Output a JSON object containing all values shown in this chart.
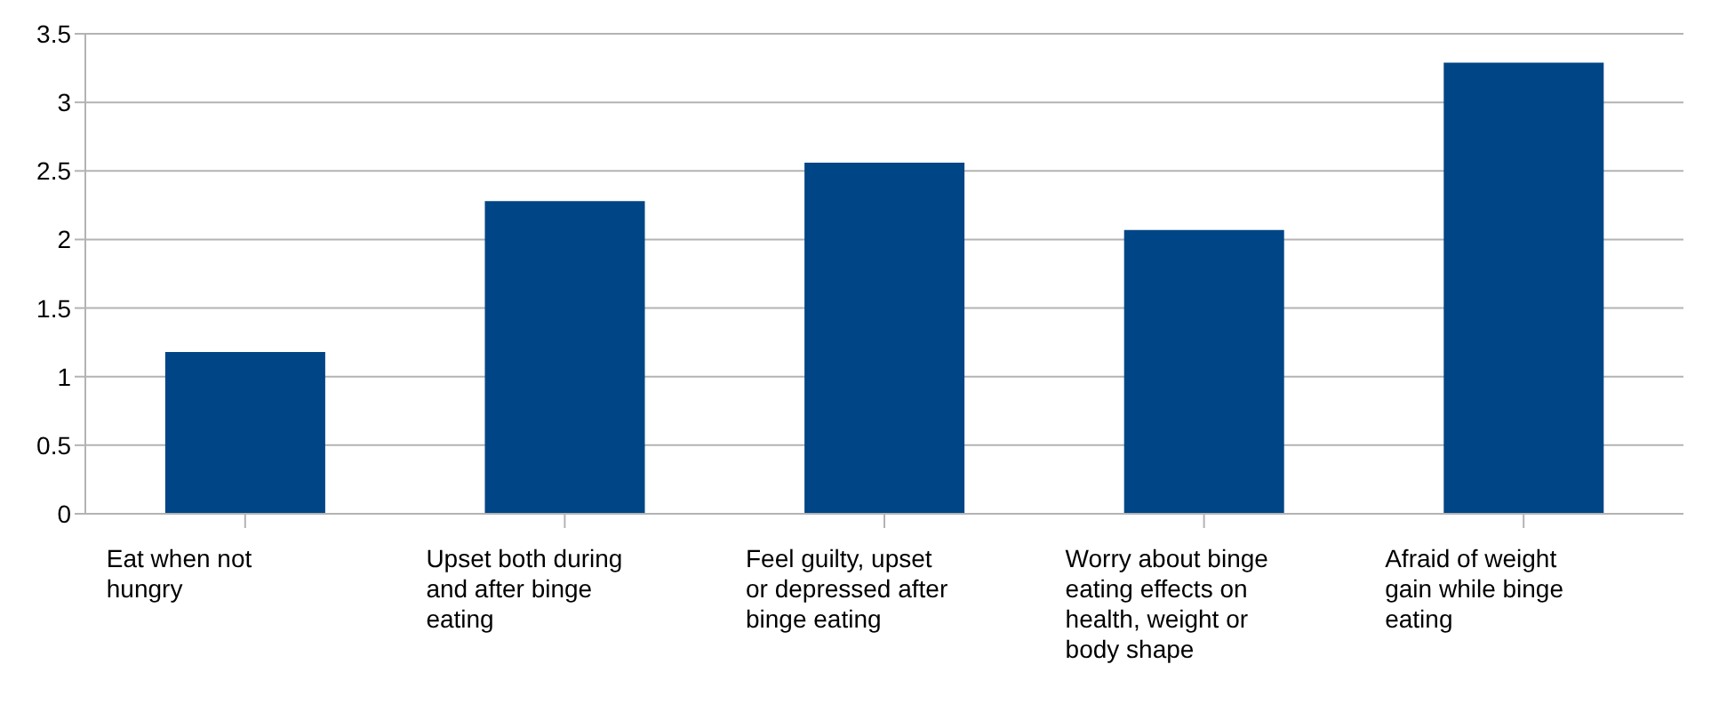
{
  "chart_data": {
    "type": "bar",
    "categories": [
      "Eat when not hungry",
      "Upset both during and after binge eating",
      "Feel guilty, upset or depressed after binge eating",
      "Worry about binge eating effects on health, weight or body shape",
      "Afraid of weight gain while binge eating"
    ],
    "values": [
      1.18,
      2.28,
      2.56,
      2.07,
      3.29
    ],
    "color": "#004586",
    "ylim": [
      0,
      3.5
    ],
    "yticks": [
      0,
      0.5,
      1,
      1.5,
      2,
      2.5,
      3,
      3.5
    ],
    "grid": "y"
  }
}
